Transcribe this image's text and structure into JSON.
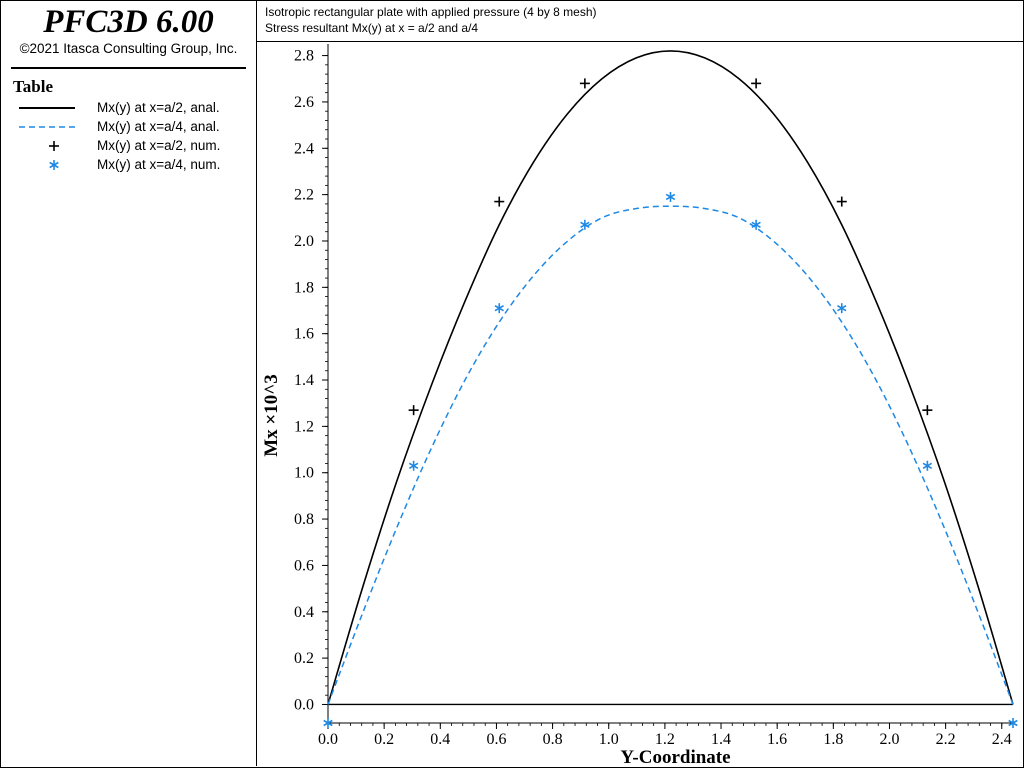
{
  "app": {
    "product": "PFC3D 6.00",
    "copyright": "©2021 Itasca Consulting Group, Inc."
  },
  "header": {
    "line1": "Isotropic rectangular plate with applied pressure (4 by 8 mesh)",
    "line2": "Stress resultant Mx(y) at x = a/2 and a/4"
  },
  "legend": {
    "title": "Table",
    "items": [
      {
        "label": "Mx(y) at x=a/2, anal.",
        "symbol": "solid-line",
        "color": "#000000"
      },
      {
        "label": "Mx(y) at x=a/4, anal.",
        "symbol": "dashed-line",
        "color": "#1e88e5"
      },
      {
        "label": "Mx(y) at x=a/2, num.",
        "symbol": "plus-icon",
        "color": "#000000"
      },
      {
        "label": "Mx(y) at x=a/4, num.",
        "symbol": "asterisk-icon",
        "color": "#1e88e5"
      }
    ]
  },
  "chart_data": {
    "type": "line",
    "xlabel": "Y-Coordinate",
    "ylabel": "Mx ×10^3",
    "xlim": [
      0,
      2.44
    ],
    "ylim": [
      -0.08,
      2.85
    ],
    "xticks": [
      "0.0",
      "0.2",
      "0.4",
      "0.6",
      "0.8",
      "1.0",
      "1.2",
      "1.4",
      "1.6",
      "1.8",
      "2.0",
      "2.2",
      "2.4"
    ],
    "yticks": [
      "0.0",
      "0.2",
      "0.4",
      "0.6",
      "0.8",
      "1.0",
      "1.2",
      "1.4",
      "1.6",
      "1.8",
      "2.0",
      "2.2",
      "2.4",
      "2.6",
      "2.8"
    ],
    "grid": false,
    "series": [
      {
        "name": "Mx(y) at x=a/2, anal.",
        "style": "solid",
        "color": "#000000",
        "x": [
          0,
          0.122,
          0.244,
          0.366,
          0.488,
          0.61,
          0.732,
          0.854,
          0.976,
          1.098,
          1.22,
          1.342,
          1.464,
          1.586,
          1.708,
          1.83,
          1.952,
          2.074,
          2.196,
          2.318,
          2.44
        ],
        "y": [
          0,
          0.5,
          0.96,
          1.37,
          1.74,
          2.07,
          2.34,
          2.55,
          2.7,
          2.79,
          2.82,
          2.79,
          2.7,
          2.55,
          2.34,
          2.07,
          1.74,
          1.37,
          0.96,
          0.5,
          0
        ]
      },
      {
        "name": "Mx(y) at x=a/4, anal.",
        "style": "dashed",
        "color": "#1e88e5",
        "x": [
          0,
          0.122,
          0.244,
          0.366,
          0.488,
          0.61,
          0.732,
          0.854,
          0.976,
          1.098,
          1.22,
          1.342,
          1.464,
          1.586,
          1.708,
          1.83,
          1.952,
          2.074,
          2.196,
          2.318,
          2.44
        ],
        "y": [
          0,
          0.39,
          0.76,
          1.1,
          1.4,
          1.65,
          1.85,
          2.0,
          2.1,
          2.14,
          2.15,
          2.14,
          2.1,
          2.0,
          1.85,
          1.65,
          1.4,
          1.1,
          0.76,
          0.39,
          0
        ]
      },
      {
        "name": "Mx(y) at x=a/2, num.",
        "marker": "plus",
        "color": "#000000",
        "x": [
          0.305,
          0.61,
          0.915,
          1.525,
          1.83,
          2.135
        ],
        "y": [
          1.27,
          2.17,
          2.68,
          2.68,
          2.17,
          1.27
        ]
      },
      {
        "name": "Mx(y) at x=a/4, num.",
        "marker": "asterisk",
        "color": "#1e88e5",
        "x": [
          0,
          0.305,
          0.61,
          0.915,
          1.22,
          1.525,
          1.83,
          2.135,
          2.44
        ],
        "y": [
          -0.08,
          1.03,
          1.71,
          2.07,
          2.19,
          2.07,
          1.71,
          1.03,
          -0.08
        ]
      }
    ]
  }
}
